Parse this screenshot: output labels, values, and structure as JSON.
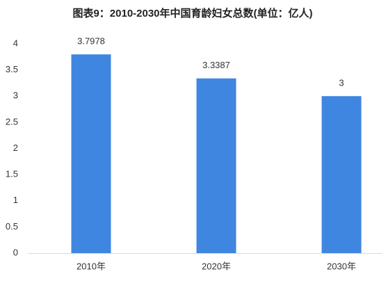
{
  "chart_data": {
    "type": "bar",
    "title": "图表9：2010-2030年中国育龄妇女总数(单位：亿人)",
    "categories": [
      "2010年",
      "2020年",
      "2030年"
    ],
    "values": [
      3.7978,
      3.3387,
      3
    ],
    "color": "#3f86e0",
    "ylim": [
      0,
      4
    ],
    "yticks": [
      0,
      0.5,
      1,
      1.5,
      2,
      2.5,
      3,
      3.5,
      4
    ],
    "grid": false
  }
}
